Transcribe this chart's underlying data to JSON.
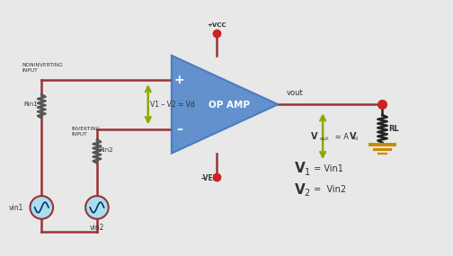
{
  "bg_color": "#e8e8e8",
  "wire_color": "#993333",
  "wire_color2": "#222222",
  "arrow_color": "#88aa00",
  "ground_color": "#cc8800",
  "amp_fill": "#5588cc",
  "amp_edge": "#4477bb",
  "label_color": "#111111",
  "label_color2": "#333333",
  "cyan_fill": "#aaddee",
  "red_dot": "#cc2222",
  "vcc_label": "+VCC",
  "vee_label": "-VEE",
  "vout_label": "vout",
  "opamp_label": "OP AMP",
  "rin1_label": "Rin1",
  "rin2_label": "Rin2",
  "vin1_label": "vin1",
  "vin2_label": "vin2",
  "noninv_label": "NONINVERTING\nINPUT",
  "inv_label": "INVERTING\nINPUT",
  "vd_label": "V1 – V2 = Vd",
  "rl_label": "RL",
  "vout_eq_label": "Vout = AVd",
  "v1_eq_bold": "V",
  "v1_sub": "1",
  "v1_rest": " = Vin1",
  "v2_eq_bold": "V",
  "v2_sub": "2",
  "v2_rest": " =  Vin2",
  "plus_label": "+",
  "minus_label": "–"
}
